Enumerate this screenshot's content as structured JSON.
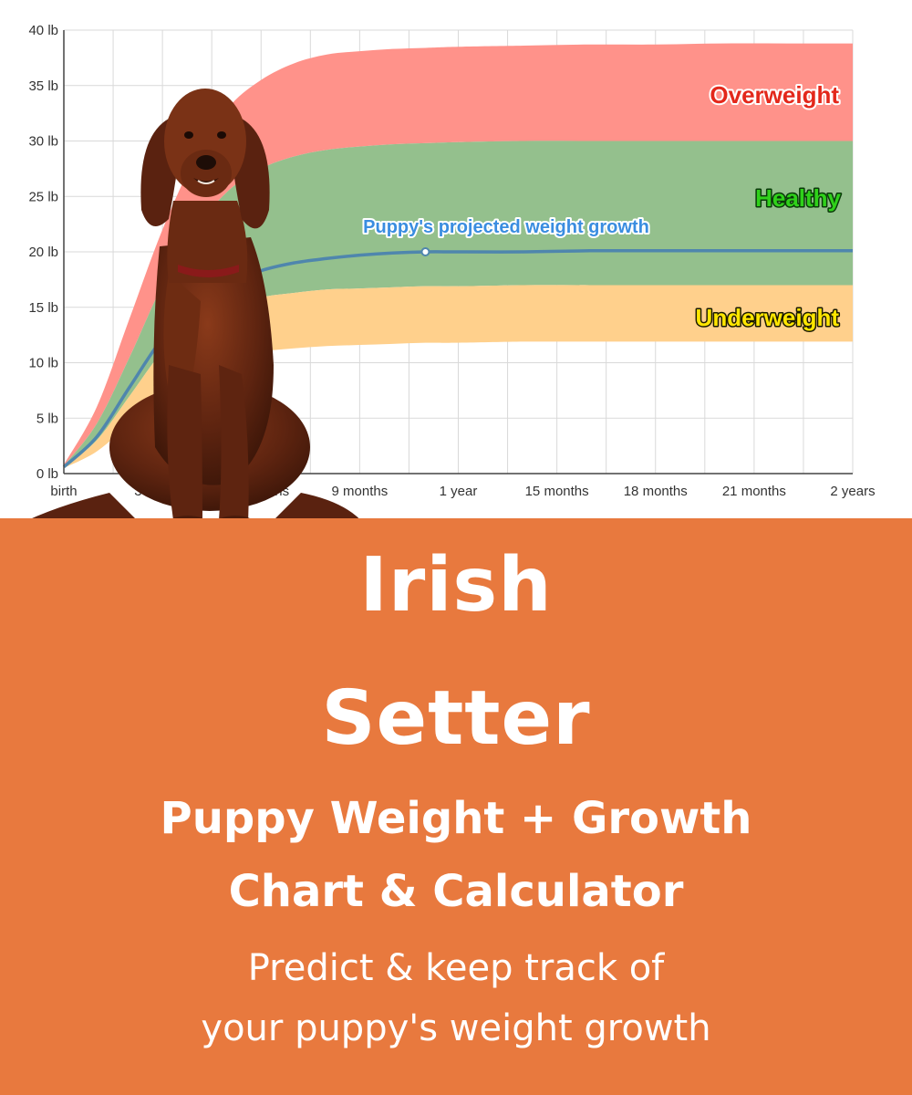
{
  "chart_data": {
    "type": "area",
    "title": "",
    "xlabel": "",
    "ylabel": "",
    "ylim": [
      0,
      40
    ],
    "xlim": [
      0,
      24
    ],
    "grid": true,
    "x_ticks": [
      {
        "label": "birth",
        "month": 0
      },
      {
        "label": "3 months",
        "month": 3
      },
      {
        "label": "6 months",
        "month": 6
      },
      {
        "label": "9 months",
        "month": 9
      },
      {
        "label": "1 year",
        "month": 12
      },
      {
        "label": "15 months",
        "month": 15
      },
      {
        "label": "18 months",
        "month": 18
      },
      {
        "label": "21 months",
        "month": 21
      },
      {
        "label": "2 years",
        "month": 24
      }
    ],
    "y_ticks": [
      {
        "label": "0 lb",
        "value": 0
      },
      {
        "label": "5 lb",
        "value": 5
      },
      {
        "label": "10 lb",
        "value": 10
      },
      {
        "label": "15 lb",
        "value": 15
      },
      {
        "label": "20 lb",
        "value": 20
      },
      {
        "label": "25 lb",
        "value": 25
      },
      {
        "label": "30 lb",
        "value": 30
      },
      {
        "label": "35 lb",
        "value": 35
      },
      {
        "label": "40 lb",
        "value": 40
      }
    ],
    "months": [
      0,
      1,
      2,
      3,
      4,
      5,
      6,
      7,
      8,
      9,
      10,
      11,
      12,
      14,
      16,
      18,
      20,
      22,
      24
    ],
    "bands": {
      "overweight_top": [
        0.8,
        6.0,
        14.0,
        22.0,
        28.5,
        33.0,
        35.5,
        37.0,
        37.8,
        38.1,
        38.3,
        38.4,
        38.5,
        38.6,
        38.7,
        38.7,
        38.8,
        38.8,
        38.8
      ],
      "healthy_top": [
        0.7,
        4.5,
        10.5,
        17.0,
        22.0,
        25.5,
        27.5,
        28.6,
        29.2,
        29.5,
        29.7,
        29.8,
        29.9,
        30.0,
        30.0,
        30.0,
        30.0,
        30.0,
        30.0
      ],
      "underweight_top": [
        0.6,
        3.0,
        7.0,
        11.0,
        13.5,
        15.0,
        15.9,
        16.3,
        16.6,
        16.7,
        16.8,
        16.9,
        16.9,
        17.0,
        17.0,
        17.0,
        17.0,
        17.0,
        17.0
      ],
      "underweight_bottom": [
        0.5,
        2.0,
        4.5,
        7.0,
        9.0,
        10.3,
        11.0,
        11.3,
        11.5,
        11.6,
        11.7,
        11.8,
        11.8,
        11.9,
        11.9,
        11.9,
        11.9,
        11.9,
        11.9
      ]
    },
    "series": [
      {
        "name": "Puppy's projected weight growth",
        "values": [
          0.6,
          3.3,
          7.8,
          12.2,
          15.2,
          17.1,
          18.3,
          19.0,
          19.4,
          19.7,
          19.9,
          20.0,
          20.0,
          20.0,
          20.1,
          20.1,
          20.1,
          20.1,
          20.1
        ]
      }
    ],
    "marker": {
      "month": 11,
      "value": 20.0
    },
    "zone_labels": {
      "overweight": "Overweight",
      "healthy": "Healthy",
      "underweight": "Underweight"
    },
    "line_label": "Puppy's projected weight growth",
    "colors": {
      "overweight": "#ff928a",
      "healthy": "#94c08d",
      "underweight": "#ffd08c",
      "line": "#4f86ad",
      "line_label": "#3a8de0",
      "overweight_text": "#e3281b",
      "healthy_text": "#2fd11a",
      "underweight_text": "#ffe600",
      "grid": "#d9d9d9",
      "panel": "#e8793e"
    }
  },
  "poster": {
    "title_line_1": "Irish",
    "title_line_2": "Setter",
    "subtitle_line_1": "Puppy Weight + Growth",
    "subtitle_line_2": "Chart & Calculator",
    "tagline_line_1": "Predict & keep track of",
    "tagline_line_2": "your puppy's weight growth"
  }
}
